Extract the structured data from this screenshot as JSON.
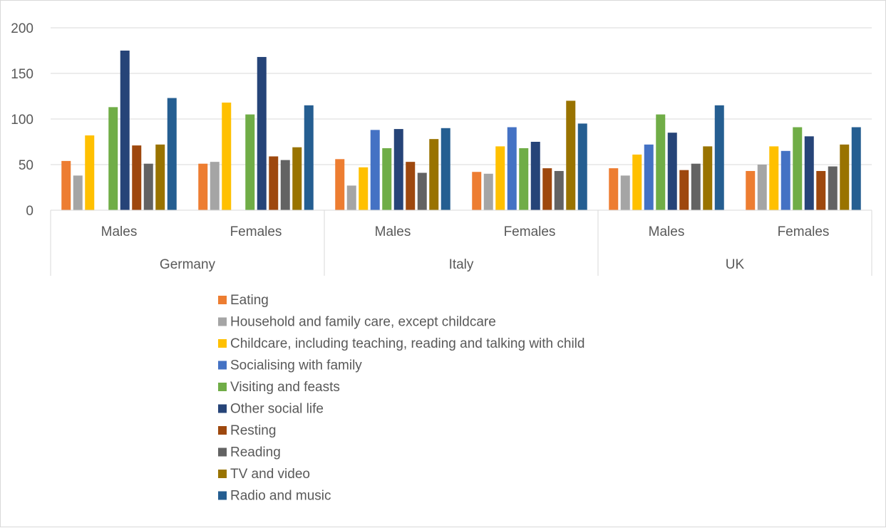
{
  "chart_data": {
    "type": "bar",
    "title": "",
    "xlabel": "",
    "ylabel": "",
    "ylim": [
      0,
      200
    ],
    "yticks": [
      0,
      50,
      100,
      150,
      200
    ],
    "grid": true,
    "legend_position": "bottom",
    "groups": [
      {
        "label": "Germany",
        "categories": [
          "Males",
          "Females"
        ]
      },
      {
        "label": "Italy",
        "categories": [
          "Males",
          "Females"
        ]
      },
      {
        "label": "UK",
        "categories": [
          "Males",
          "Females"
        ]
      }
    ],
    "series": [
      {
        "name": "Eating",
        "color": "#ED7D31",
        "values": [
          54,
          51,
          56,
          42,
          46,
          43
        ]
      },
      {
        "name": "Household and family care, except childcare",
        "color": "#A5A5A5",
        "values": [
          38,
          53,
          27,
          40,
          38,
          50
        ]
      },
      {
        "name": "Childcare, including teaching, reading and talking with child",
        "color": "#FFC000",
        "values": [
          82,
          118,
          47,
          70,
          61,
          70
        ]
      },
      {
        "name": "Socialising with family",
        "color": "#4472C4",
        "values": [
          null,
          null,
          88,
          91,
          72,
          65
        ]
      },
      {
        "name": "Visiting and feasts",
        "color": "#70AD47",
        "values": [
          113,
          105,
          68,
          68,
          105,
          91
        ]
      },
      {
        "name": "Other social life",
        "color": "#264478",
        "values": [
          175,
          168,
          89,
          75,
          85,
          81
        ]
      },
      {
        "name": "Resting",
        "color": "#9E480E",
        "values": [
          71,
          59,
          53,
          46,
          44,
          43
        ]
      },
      {
        "name": "Reading",
        "color": "#636363",
        "values": [
          51,
          55,
          41,
          43,
          51,
          48
        ]
      },
      {
        "name": "TV and video",
        "color": "#997300",
        "values": [
          72,
          69,
          78,
          120,
          70,
          72
        ]
      },
      {
        "name": "Radio and music",
        "color": "#255E91",
        "values": [
          123,
          115,
          90,
          95,
          115,
          91
        ]
      }
    ]
  }
}
